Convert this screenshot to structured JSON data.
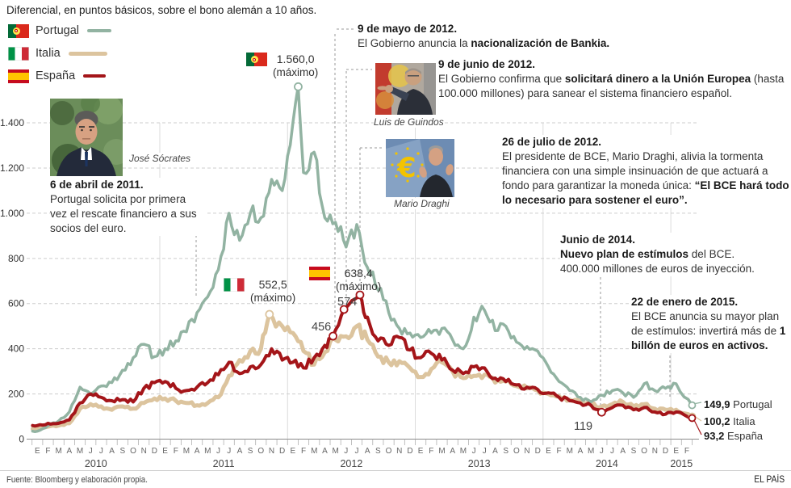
{
  "title": "Diferencial, en puntos básicos, sobre el bono alemán a 10 años.",
  "legend": {
    "items": [
      {
        "label": "Portugal",
        "color": "#92b3a2"
      },
      {
        "label": "Italia",
        "color": "#dcc49e"
      },
      {
        "label": "España",
        "color": "#a41519"
      }
    ]
  },
  "annotations": {
    "abril2011": {
      "date": "6 de abril de 2011.",
      "body": "Portugal solicita por primera vez el rescate financiero a sus socios del euro.",
      "photo_caption": "José Sócrates"
    },
    "mayo2012": {
      "date": "9 de mayo de 2012.",
      "body_pre": "El Gobierno anuncia la ",
      "body_bold": "nacionalización de Bankia."
    },
    "junio2012": {
      "date": "9 de junio de 2012.",
      "body_pre": "El Gobierno confirma que ",
      "body_bold": "solicitará dinero a la Unión Europea",
      "body_post": " (hasta 100.000 millones) para sanear el sistema financiero español.",
      "photo_caption": "Luis de Guindos"
    },
    "julio2012": {
      "date": "26 de julio de 2012.",
      "body_pre": "El presidente de BCE, Mario Draghi, alivia la tormenta financiera con una simple insinuación de que actuará a fondo para garantizar la moneda única: ",
      "body_bold": "“El BCE hará todo lo necesario para sostener el euro”.",
      "photo_caption": "Mario Draghi"
    },
    "junio2014": {
      "date": "Junio de 2014.",
      "line2_bold": "Nuevo plan de estímulos",
      "line2_rest": " del BCE.",
      "line3": "400.000 millones de euros de inyección."
    },
    "enero2015": {
      "date": "22 de enero de 2015.",
      "body_pre": "El BCE anuncia su mayor plan de estímulos: invertirá más de ",
      "body_bold": "1 billón de euros en activos."
    }
  },
  "peak_labels": {
    "portugal": {
      "value": "1.560,0",
      "sub": "(máximo)"
    },
    "italia": {
      "value": "552,5",
      "sub": "(máximo)"
    },
    "espana": {
      "value": "638,4",
      "sub": "(máximo)"
    },
    "espana_456": "456",
    "espana_574": "574",
    "espana_119": "119"
  },
  "end_labels": [
    {
      "value": "149,9",
      "country": "Portugal"
    },
    {
      "value": "100,2",
      "country": "Italia"
    },
    {
      "value": "93,2",
      "country": "España"
    }
  ],
  "footer": {
    "source": "Fuente: Bloomberg y elaboración propia.",
    "brand": "EL PAÍS"
  },
  "chart_data": {
    "type": "line",
    "title": "Diferencial, en puntos básicos, sobre el bono alemán a 10 años.",
    "x_unit": "months",
    "x_start": "enero 2010",
    "x_end": "febrero 2015",
    "months_total": 62,
    "month_letters": [
      "E",
      "F",
      "M",
      "A",
      "M",
      "J",
      "J",
      "A",
      "S",
      "O",
      "N",
      "D"
    ],
    "years": [
      "2010",
      "2011",
      "2012",
      "2013",
      "2014",
      "2015"
    ],
    "ylim": [
      0,
      1560
    ],
    "yticks": [
      0,
      200,
      400,
      600,
      800,
      1000,
      1200,
      1400
    ],
    "ytick_labels": [
      "0",
      "200",
      "400",
      "600",
      "800",
      "1.000",
      "1.200",
      "1.400"
    ],
    "grid": "dashed-horizontal, solid vertical year separators",
    "legend_position": "top-left",
    "series": [
      {
        "name": "Portugal",
        "color": "#92b3a2",
        "width": 3.5,
        "seed": 11,
        "monthly_values": [
          35,
          60,
          80,
          120,
          230,
          200,
          235,
          250,
          305,
          360,
          420,
          365,
          400,
          435,
          475,
          560,
          630,
          750,
          1000,
          880,
          1000,
          980,
          1150,
          1100,
          1400,
          1180,
          1270,
          980,
          960,
          850,
          950,
          760,
          660,
          560,
          490,
          470,
          450,
          470,
          490,
          440,
          400,
          540,
          570,
          480,
          500,
          430,
          410,
          390,
          320,
          255,
          215,
          185,
          165,
          195,
          215,
          205,
          185,
          245,
          215,
          225,
          245
        ],
        "end_value": 149.9
      },
      {
        "name": "Italia",
        "color": "#dcc49e",
        "width": 5,
        "seed": 23,
        "monthly_values": [
          45,
          55,
          60,
          70,
          135,
          155,
          145,
          130,
          145,
          135,
          160,
          180,
          180,
          170,
          160,
          150,
          160,
          185,
          280,
          350,
          390,
          400,
          520,
          500,
          470,
          390,
          330,
          385,
          440,
          455,
          500,
          440,
          365,
          340,
          345,
          315,
          275,
          310,
          340,
          300,
          270,
          280,
          285,
          250,
          255,
          235,
          225,
          215,
          200,
          190,
          175,
          165,
          155,
          145,
          155,
          165,
          145,
          155,
          135,
          130,
          130
        ],
        "end_value": 100.2
      },
      {
        "name": "España",
        "color": "#a41519",
        "width": 4,
        "seed": 37,
        "monthly_values": [
          60,
          70,
          70,
          85,
          160,
          200,
          185,
          170,
          175,
          165,
          225,
          250,
          255,
          225,
          215,
          230,
          250,
          285,
          340,
          290,
          320,
          330,
          400,
          350,
          340,
          315,
          360,
          415,
          490,
          545,
          600,
          540,
          435,
          415,
          450,
          395,
          360,
          380,
          350,
          305,
          290,
          320,
          315,
          270,
          255,
          240,
          230,
          220,
          205,
          185,
          170,
          160,
          150,
          125,
          140,
          150,
          130,
          140,
          120,
          110,
          120
        ],
        "end_value": 93.2
      }
    ],
    "point_markers": [
      {
        "series": "Portugal",
        "month": 25.0,
        "value": 1560,
        "label": "1.560,0 (máximo)"
      },
      {
        "series": "Italia",
        "month": 22.3,
        "value": 552.5,
        "label": "552,5 (máximo)"
      },
      {
        "series": "España",
        "month": 28.27,
        "value": 456,
        "label": "456"
      },
      {
        "series": "España",
        "month": 29.3,
        "value": 574,
        "label": "574"
      },
      {
        "series": "España",
        "month": 30.8,
        "value": 638.4,
        "label": "638,4 (máximo)"
      },
      {
        "series": "España",
        "month": 53.5,
        "value": 119,
        "label": "119"
      }
    ]
  }
}
